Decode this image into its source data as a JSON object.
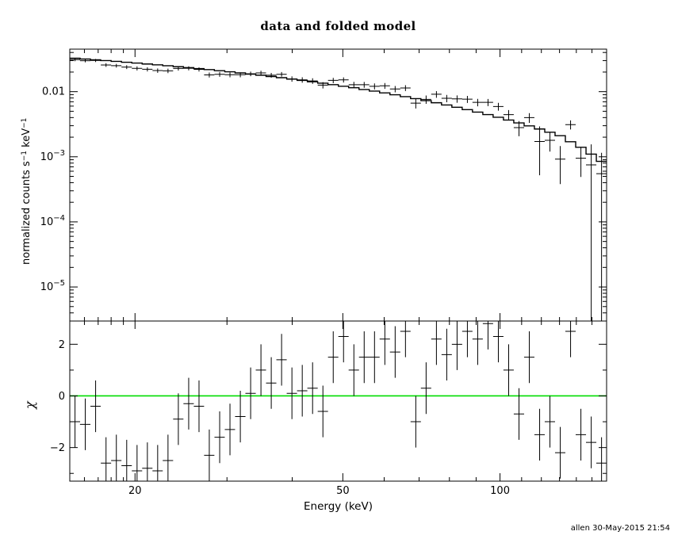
{
  "footer": {
    "credit": "allen 30-May-2015 21:54"
  },
  "chart_data": {
    "type": "scatter",
    "title": "data and folded model",
    "xlabel": "Energy (keV)",
    "ylabel_top_segments": [
      {
        "t": "normalized counts s"
      },
      {
        "t": "−1",
        "sup": true
      },
      {
        "t": " keV"
      },
      {
        "t": "−1",
        "sup": true
      }
    ],
    "ylabel_bottom": "χ",
    "x_axis": {
      "scale": "log",
      "min": 15,
      "max": 160,
      "major_ticks": [
        {
          "v": 20,
          "label": "20"
        },
        {
          "v": 50,
          "label": "50"
        },
        {
          "v": 100,
          "label": "100"
        }
      ],
      "minor_ticks": [
        16,
        17,
        18,
        19,
        30,
        40,
        60,
        70,
        80,
        90,
        110,
        120,
        130,
        140,
        150
      ]
    },
    "y_axis_top": {
      "scale": "log",
      "min": 3e-06,
      "max": 0.045,
      "major_ticks": [
        {
          "v": 0.01,
          "label": "0.01"
        },
        {
          "v": 0.001,
          "label": "10^−3"
        },
        {
          "v": 0.0001,
          "label": "10^−4"
        },
        {
          "v": 1e-05,
          "label": "10^−5"
        }
      ]
    },
    "y_axis_bottom": {
      "scale": "linear",
      "min": -3.3,
      "max": 2.9,
      "major_ticks": [
        {
          "v": -2,
          "label": "−2"
        },
        {
          "v": 0,
          "label": "0"
        },
        {
          "v": 2,
          "label": "2"
        }
      ],
      "minor_ticks": [
        -3,
        -1,
        1
      ]
    },
    "zero_line_color": "#00dd00",
    "series": {
      "energy": [
        15.35,
        16.06,
        16.81,
        17.6,
        18.42,
        19.28,
        20.18,
        21.12,
        22.1,
        23.13,
        24.21,
        25.34,
        26.52,
        27.75,
        29.05,
        30.4,
        31.82,
        33.3,
        34.85,
        36.47,
        38.17,
        39.95,
        41.81,
        43.76,
        45.8,
        47.93,
        50.16,
        52.5,
        54.94,
        57.5,
        60.18,
        62.98,
        65.91,
        68.98,
        72.19,
        75.55,
        79.07,
        82.75,
        86.6,
        90.63,
        94.85,
        99.27,
        103.89,
        108.73,
        113.79,
        119.09,
        124.63,
        130.43,
        136.5,
        142.86,
        149.51,
        156.47
      ],
      "energy_halfwidth": [
        0.35,
        0.37,
        0.38,
        0.4,
        0.42,
        0.44,
        0.46,
        0.48,
        0.5,
        0.53,
        0.55,
        0.58,
        0.6,
        0.63,
        0.66,
        0.69,
        0.73,
        0.76,
        0.79,
        0.83,
        0.87,
        0.91,
        0.95,
        1.0,
        1.04,
        1.09,
        1.14,
        1.2,
        1.25,
        1.31,
        1.37,
        1.44,
        1.5,
        1.57,
        1.65,
        1.72,
        1.8,
        1.89,
        1.97,
        2.07,
        2.16,
        2.26,
        2.37,
        2.48,
        2.59,
        2.72,
        2.84,
        2.97,
        3.11,
        3.26,
        3.41,
        3.57
      ],
      "counts": [
        0.031,
        0.0299,
        0.0302,
        0.0257,
        0.0251,
        0.0239,
        0.0228,
        0.0221,
        0.0211,
        0.0209,
        0.0227,
        0.0229,
        0.022,
        0.0181,
        0.0185,
        0.0182,
        0.0182,
        0.0188,
        0.0194,
        0.0179,
        0.0185,
        0.0157,
        0.0152,
        0.0146,
        0.0126,
        0.0149,
        0.0152,
        0.0128,
        0.0128,
        0.0121,
        0.0123,
        0.011,
        0.0114,
        0.00667,
        0.00761,
        0.00913,
        0.0079,
        0.00776,
        0.00767,
        0.00685,
        0.00685,
        0.00592,
        0.00444,
        0.0028,
        0.004,
        0.00172,
        0.00179,
        0.00092,
        0.00312,
        0.00095,
        0.00075,
        0.00055
      ],
      "counts_err": [
        0.00163,
        0.00165,
        0.00164,
        0.00165,
        0.00164,
        0.00164,
        0.00162,
        0.00162,
        0.00163,
        0.00163,
        0.00162,
        0.00161,
        0.0016,
        0.00159,
        0.00158,
        0.00158,
        0.00155,
        0.00154,
        0.00154,
        0.00152,
        0.00151,
        0.00148,
        0.00146,
        0.00145,
        0.00142,
        0.0014,
        0.00137,
        0.00135,
        0.00132,
        0.00129,
        0.00125,
        0.00122,
        0.00119,
        0.00115,
        0.00111,
        0.00107,
        0.00103,
        0.00099,
        0.00095,
        0.0009,
        0.00086,
        0.00082,
        0.00077,
        0.00073,
        0.00068,
        0.0012,
        0.00059,
        0.00054,
        0.0005,
        0.00046,
        0.0008,
        0.0006
      ],
      "model": [
        0.0326,
        0.0317,
        0.0309,
        0.03,
        0.0292,
        0.0283,
        0.0275,
        0.0266,
        0.0258,
        0.025,
        0.0242,
        0.0234,
        0.0226,
        0.0218,
        0.021,
        0.0202,
        0.0194,
        0.0186,
        0.0179,
        0.0171,
        0.0164,
        0.0156,
        0.0149,
        0.0142,
        0.0135,
        0.0128,
        0.0121,
        0.0115,
        0.0108,
        0.0102,
        0.00957,
        0.00897,
        0.00839,
        0.00782,
        0.00728,
        0.00676,
        0.00625,
        0.00577,
        0.0053,
        0.00486,
        0.00444,
        0.00404,
        0.00367,
        0.00331,
        0.00298,
        0.00267,
        0.00238,
        0.00211,
        0.0017,
        0.0014,
        0.0011,
        0.00085
      ],
      "chi": [
        -1.0,
        -1.1,
        -0.4,
        -2.6,
        -2.5,
        -2.7,
        -2.9,
        -2.8,
        -2.9,
        -2.5,
        -0.9,
        -0.3,
        -0.4,
        -2.3,
        -1.6,
        -1.3,
        -0.8,
        0.1,
        1.0,
        0.5,
        1.4,
        0.1,
        0.2,
        0.3,
        -0.6,
        1.5,
        2.3,
        1.0,
        1.5,
        1.5,
        2.2,
        1.7,
        2.5,
        -1.0,
        0.3,
        2.2,
        1.6,
        2.0,
        2.5,
        2.2,
        2.8,
        2.3,
        1.0,
        -0.7,
        1.5,
        -1.5,
        -1.0,
        -2.2,
        2.5,
        -1.5,
        -1.8,
        -2.6
      ],
      "chi_err": 1
    }
  }
}
